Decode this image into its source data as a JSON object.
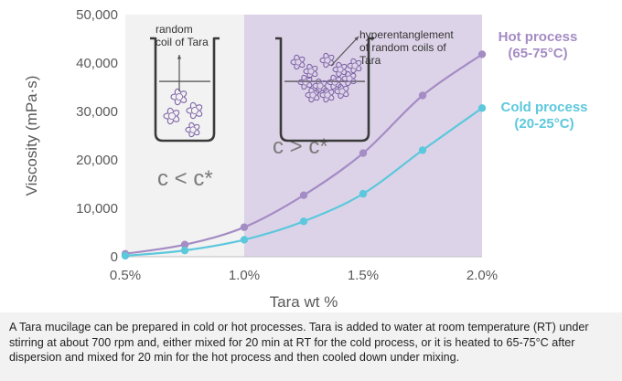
{
  "chart_data": {
    "type": "line",
    "title": "",
    "xlabel": "Tara wt %",
    "ylabel": "Viscosity (mPa·s)",
    "x": [
      0.5,
      0.75,
      1.0,
      1.25,
      1.5,
      1.75,
      2.0
    ],
    "x_ticks": [
      0.5,
      1.0,
      1.5,
      2.0
    ],
    "x_tick_labels": [
      "0.5%",
      "1.0%",
      "1.5%",
      "2.0%"
    ],
    "y_ticks": [
      0,
      10000,
      20000,
      30000,
      40000,
      50000
    ],
    "y_tick_labels": [
      "0",
      "10,000",
      "20,000",
      "30,000",
      "40,000",
      "50,000"
    ],
    "xlim": [
      0.5,
      2.0
    ],
    "ylim": [
      0,
      50000
    ],
    "grid": false,
    "series": [
      {
        "name": "Hot process",
        "condition": "(65-75°C)",
        "color": "#a48cc4",
        "values": [
          600,
          2500,
          6100,
          12700,
          21400,
          33300,
          41800
        ]
      },
      {
        "name": "Cold process",
        "condition": "(20-25°C)",
        "color": "#5cc8dc",
        "values": [
          200,
          1300,
          3500,
          7300,
          13000,
          22000,
          30700
        ]
      }
    ],
    "regions": [
      {
        "label": "c < c*",
        "x_range": [
          0.5,
          1.0
        ],
        "color": "#f2f2f2"
      },
      {
        "label": "c > c*",
        "x_range": [
          1.0,
          2.0
        ],
        "color": "#ddd3e8"
      }
    ],
    "annotations": [
      {
        "text_lines": [
          "random",
          "coil of Tara"
        ],
        "icon": "beaker-dilute-coils-icon"
      },
      {
        "text_lines": [
          "hyperentanglement",
          "of random coils of",
          "Tara"
        ],
        "icon": "beaker-entangled-coils-icon"
      }
    ]
  },
  "caption": "A Tara mucilage can be prepared in cold or hot processes. Tara is added to water at room temperature (RT) under stirring at about 700 rpm and, either mixed for 20 min at RT for the cold process, or it is heated to 65-75°C after dispersion and mixed for 20 min for the hot process and then cooled down under mixing."
}
